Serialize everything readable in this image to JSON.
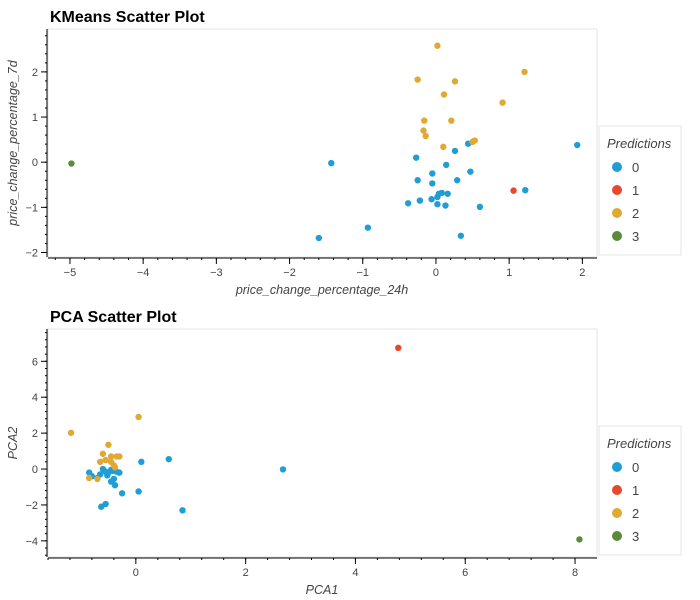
{
  "legend_colors": [
    "#1f9ed5",
    "#e8472c",
    "#e1a834",
    "#5b8a3c"
  ],
  "chart_data": [
    {
      "id": "kmeans",
      "type": "scatter",
      "title": "KMeans Scatter Plot",
      "xlabel": "price_change_percentage_24h",
      "ylabel": "price_change_percentage_7d",
      "xlim": [
        -5.3,
        2.2
      ],
      "ylim": [
        -2.1,
        2.95
      ],
      "xticks": [
        -5,
        -4,
        -3,
        -2,
        -1,
        0,
        1,
        2
      ],
      "yticks": [
        -2,
        -1,
        0,
        1,
        2
      ],
      "legend": {
        "title": "Predictions",
        "entries": [
          "0",
          "1",
          "2",
          "3"
        ],
        "position": "right"
      },
      "series": [
        {
          "name": "0",
          "points": [
            [
              -1.6,
              -1.68
            ],
            [
              -0.93,
              -1.45
            ],
            [
              -1.43,
              -0.02
            ],
            [
              -0.27,
              0.1
            ],
            [
              -0.25,
              -0.4
            ],
            [
              -0.38,
              -0.91
            ],
            [
              -0.22,
              -0.85
            ],
            [
              -0.05,
              -0.25
            ],
            [
              -0.05,
              -0.47
            ],
            [
              -0.06,
              -0.82
            ],
            [
              0.02,
              -0.77
            ],
            [
              0.04,
              -0.7
            ],
            [
              0.08,
              -0.68
            ],
            [
              0.02,
              -0.93
            ],
            [
              0.13,
              -0.96
            ],
            [
              0.16,
              -0.7
            ],
            [
              0.14,
              -0.06
            ],
            [
              0.26,
              0.25
            ],
            [
              0.29,
              -0.4
            ],
            [
              0.34,
              -1.63
            ],
            [
              0.44,
              0.41
            ],
            [
              0.47,
              -0.21
            ],
            [
              0.6,
              -0.99
            ],
            [
              1.22,
              -0.62
            ],
            [
              1.93,
              0.38
            ]
          ]
        },
        {
          "name": "1",
          "points": [
            [
              1.06,
              -0.63
            ]
          ]
        },
        {
          "name": "2",
          "points": [
            [
              0.02,
              2.58
            ],
            [
              -0.25,
              1.83
            ],
            [
              0.26,
              1.79
            ],
            [
              0.11,
              1.5
            ],
            [
              1.21,
              2.0
            ],
            [
              0.91,
              1.32
            ],
            [
              -0.16,
              0.92
            ],
            [
              0.21,
              0.92
            ],
            [
              -0.17,
              0.7
            ],
            [
              -0.14,
              0.58
            ],
            [
              0.53,
              0.48
            ],
            [
              0.5,
              0.45
            ],
            [
              0.1,
              0.34
            ]
          ]
        },
        {
          "name": "3",
          "points": [
            [
              -4.98,
              -0.03
            ]
          ]
        }
      ]
    },
    {
      "id": "pca",
      "type": "scatter",
      "title": "PCA Scatter Plot",
      "xlabel": "PCA1",
      "ylabel": "PCA2",
      "xlim": [
        -1.6,
        8.4
      ],
      "ylim": [
        -4.9,
        7.8
      ],
      "xticks": [
        0,
        2,
        4,
        6,
        8
      ],
      "yticks": [
        -4,
        -2,
        0,
        2,
        4,
        6
      ],
      "legend": {
        "title": "Predictions",
        "entries": [
          "0",
          "1",
          "2",
          "3"
        ],
        "position": "right"
      },
      "series": [
        {
          "name": "0",
          "points": [
            [
              -0.85,
              -0.2
            ],
            [
              -0.8,
              -0.4
            ],
            [
              -0.7,
              -0.5
            ],
            [
              -0.65,
              -0.3
            ],
            [
              -0.6,
              0.0
            ],
            [
              -0.55,
              -0.15
            ],
            [
              -0.52,
              -0.35
            ],
            [
              -0.5,
              -0.2
            ],
            [
              -0.45,
              -0.05
            ],
            [
              -0.42,
              -0.1
            ],
            [
              -0.4,
              -0.55
            ],
            [
              -0.35,
              -0.15
            ],
            [
              -0.45,
              -0.7
            ],
            [
              -0.38,
              -0.9
            ],
            [
              -0.3,
              -0.2
            ],
            [
              -0.25,
              -1.35
            ],
            [
              -0.63,
              -2.1
            ],
            [
              -0.55,
              -1.95
            ],
            [
              0.05,
              -1.25
            ],
            [
              0.1,
              0.4
            ],
            [
              0.6,
              0.55
            ],
            [
              0.85,
              -2.3
            ],
            [
              2.68,
              -0.02
            ]
          ]
        },
        {
          "name": "1",
          "points": [
            [
              4.78,
              6.75
            ]
          ]
        },
        {
          "name": "2",
          "points": [
            [
              -1.18,
              2.02
            ],
            [
              0.05,
              2.9
            ],
            [
              -0.5,
              1.35
            ],
            [
              -0.6,
              0.85
            ],
            [
              -0.45,
              0.7
            ],
            [
              -0.35,
              0.7
            ],
            [
              -0.3,
              0.7
            ],
            [
              -0.65,
              0.4
            ],
            [
              -0.55,
              0.5
            ],
            [
              -0.45,
              0.4
            ],
            [
              -0.4,
              0.2
            ],
            [
              -0.38,
              0.1
            ],
            [
              -0.85,
              -0.5
            ],
            [
              -0.7,
              -0.55
            ]
          ]
        },
        {
          "name": "3",
          "points": [
            [
              8.08,
              -3.92
            ]
          ]
        }
      ]
    }
  ]
}
